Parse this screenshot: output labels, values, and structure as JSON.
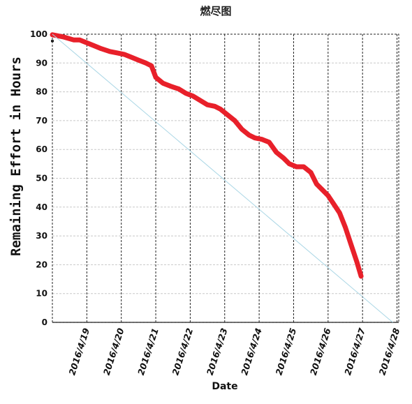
{
  "chart_data": {
    "type": "line",
    "title": "燃尽图",
    "xlabel": "Date",
    "ylabel": "Remaining Effort in Hours",
    "ylim": [
      0,
      100
    ],
    "y_ticks": [
      0,
      10,
      20,
      30,
      40,
      50,
      60,
      70,
      80,
      90,
      100
    ],
    "x_ticks": [
      "2016/4/19",
      "2016/4/20",
      "2016/4/21",
      "2016/4/22",
      "2016/4/23",
      "2016/4/24",
      "2016/4/25",
      "2016/4/26",
      "2016/4/27",
      "2016/4/28"
    ],
    "xlim": [
      "2016/4/18",
      "2016/4/28 01:12"
    ],
    "grid": {
      "x": true,
      "y": true
    },
    "colors": {
      "remaining": "#e8202a",
      "ideal": "#a9d6e5",
      "grid_v": "#222222",
      "grid_h": "#c8c8c8"
    },
    "series": [
      {
        "role": "remaining",
        "x": [
          "2016/4/18 00:00",
          "2016/4/18 08:00",
          "2016/4/18 15:00",
          "2016/4/18 19:00",
          "2016/4/19 00:00",
          "2016/4/19 05:00",
          "2016/4/19 10:00",
          "2016/4/19 16:00",
          "2016/4/19 21:00",
          "2016/4/20 02:00",
          "2016/4/20 07:00",
          "2016/4/20 12:00",
          "2016/4/20 17:00",
          "2016/4/20 21:00",
          "2016/4/21 00:00",
          "2016/4/21 05:00",
          "2016/4/21 10:00",
          "2016/4/21 16:00",
          "2016/4/21 21:00",
          "2016/4/22 02:00",
          "2016/4/22 07:00",
          "2016/4/22 12:00",
          "2016/4/22 17:00",
          "2016/4/22 21:00",
          "2016/4/23 02:00",
          "2016/4/23 07:00",
          "2016/4/23 12:00",
          "2016/4/23 17:00",
          "2016/4/23 21:00",
          "2016/4/24 02:00",
          "2016/4/24 07:00",
          "2016/4/24 12:00",
          "2016/4/24 17:00",
          "2016/4/24 21:00",
          "2016/4/25 02:00",
          "2016/4/25 07:00",
          "2016/4/25 12:00",
          "2016/4/25 16:00",
          "2016/4/25 20:00",
          "2016/4/26 00:00",
          "2016/4/26 04:00",
          "2016/4/26 08:00",
          "2016/4/26 12:00",
          "2016/4/26 16:00",
          "2016/4/26 20:00",
          "2016/4/26 23:00"
        ],
        "values": [
          99.8,
          99,
          98,
          98,
          97,
          96,
          95,
          94,
          93.5,
          93,
          92,
          91,
          90,
          89,
          85,
          83,
          82,
          81,
          79.5,
          78.5,
          77,
          75.5,
          75,
          74,
          72,
          70,
          67,
          65,
          64,
          63.5,
          62.5,
          59,
          57,
          55,
          54,
          54,
          52,
          48,
          46,
          44,
          41,
          38,
          33,
          27,
          21,
          16
        ]
      },
      {
        "role": "ideal",
        "x": [
          "2016/4/18 00:00",
          "2016/4/27 21:00"
        ],
        "values": [
          100,
          0
        ]
      }
    ]
  }
}
